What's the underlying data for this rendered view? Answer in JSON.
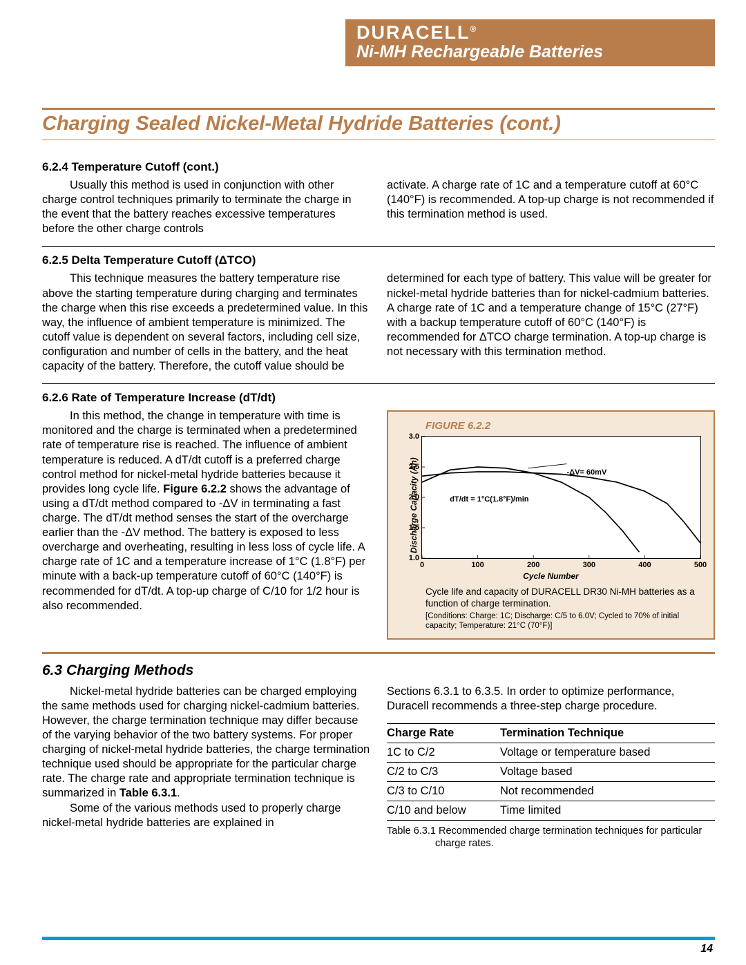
{
  "header": {
    "brand": "DURACELL",
    "brand_reg": "®",
    "subtitle": "Ni-MH Rechargeable Batteries",
    "bar_color": "#b87d4b",
    "text_color": "#ffffff"
  },
  "title": "Charging Sealed Nickel-Metal Hydride Batteries (cont.)",
  "sections": {
    "s624": {
      "head": "6.2.4 Temperature Cutoff (cont.)",
      "left": "Usually this method is used in conjunction with other charge control techniques primarily to terminate the charge in the event that the battery reaches excessive temperatures before the other charge controls",
      "right": "activate.  A charge rate of 1C and a temperature cutoff at 60°C (140°F) is recommended.  A top-up charge is not recommended if this termination method is used."
    },
    "s625": {
      "head": "6.2.5  Delta Temperature Cutoff (ΔTCO)",
      "left": "This technique measures the battery temperature rise above the starting temperature during charging and terminates the charge when this rise exceeds a predetermined value.  In this way, the influence of ambient temperature is minimized.  The cutoff value is dependent on several factors, including cell size, configuration and number of cells in the battery, and the heat capacity of the battery.  Therefore, the cutoff value should be",
      "right": "determined for each type of battery.  This value will be greater for nickel-metal hydride batteries than for nickel-cadmium batteries.  A charge rate of 1C and a temperature change of 15°C (27°F) with a backup temperature cutoff of 60°C (140°F) is recommended for ΔTCO charge termination.  A top-up charge is not necessary with this termination method."
    },
    "s626": {
      "head": "6.2.6  Rate of Temperature Increase (dT/dt)",
      "p1": "In this method, the change in temperature with time is monitored and the charge is terminated when a predetermined rate of temperature rise is reached.  The influence of ambient temperature is reduced.  A dT/dt cutoff is a preferred charge control method for nickel-metal hydride batteries because it provides long cycle life.  ",
      "p1b": " shows the advantage of using a dT/dt method compared to -ΔV in terminating a fast charge.  The dT/dt method senses the start of the overcharge earlier than the -ΔV method.  The battery is exposed to less overcharge and overheating, resulting in less loss of cycle life.  A charge rate of 1C and a temperature increase of 1°C (1.8°F) per minute with a back-up temperature cutoff of 60°C (140°F) is recommended for dT/dt.  A top-up charge of C/10 for 1/2 hour is also recommended.",
      "fig_ref": "Figure 6.2.2"
    },
    "s63": {
      "head": "6.3  Charging Methods",
      "left1": "Nickel-metal hydride batteries can be charged employing the same methods used for charging nickel-cadmium batteries.  However, the charge termination technique may differ because of the varying behavior of the two battery systems.  For proper charging of nickel-metal hydride batteries, the charge termination technique used should be appropriate for the particular charge rate.  The charge rate and appropriate termination technique is summarized in ",
      "tbl_ref": "Table 6.3.1",
      "left1b": ".",
      "left2": "Some of the various methods used to properly charge nickel-metal hydride batteries are explained in",
      "right1": "Sections 6.3.1 to 6.3.5.  In order to optimize performance, Duracell recommends a three-step charge procedure."
    }
  },
  "figure": {
    "label": "FIGURE 6.2.2",
    "type": "line",
    "xlabel": "Cycle Number",
    "ylabel": "Discharge Capacity (Ah)",
    "xlim": [
      0,
      500
    ],
    "xtick_step": 100,
    "ylim": [
      1.0,
      3.0
    ],
    "ytick_step": 0.5,
    "xticks": [
      "0",
      "100",
      "200",
      "300",
      "400",
      "500"
    ],
    "yticks": [
      "1.0",
      "1.5",
      "2.0",
      "2.5",
      "3.0"
    ],
    "series": [
      {
        "name": "dT/dt = 1°C(1.8°F)/min",
        "color": "#000000",
        "x": [
          0,
          50,
          100,
          150,
          200,
          250,
          300,
          350,
          400,
          440,
          470,
          500
        ],
        "y": [
          2.35,
          2.4,
          2.42,
          2.42,
          2.4,
          2.38,
          2.33,
          2.25,
          2.1,
          1.9,
          1.6,
          1.25
        ]
      },
      {
        "name": "-ΔV= 60mV",
        "color": "#000000",
        "x": [
          0,
          50,
          100,
          150,
          200,
          250,
          300,
          330,
          360,
          390
        ],
        "y": [
          2.25,
          2.45,
          2.5,
          2.48,
          2.4,
          2.25,
          2.0,
          1.75,
          1.45,
          1.1
        ]
      }
    ],
    "annotations": {
      "a1": "-ΔV= 60mV",
      "a2": "dT/dt = 1°C(1.8°F)/min"
    },
    "caption": "Cycle life and capacity of DURACELL DR30 Ni-MH batteries as a function of charge termination.",
    "conditions": "[Conditions: Charge: 1C; Discharge: C/5 to 6.0V; Cycled to 70% of initial capacity; Temperature:  21°C (70°F)]",
    "background_color": "#f5e8d8",
    "border_color": "#b87d4b"
  },
  "table": {
    "columns": [
      "Charge Rate",
      "Termination Technique"
    ],
    "rows": [
      [
        "1C to C/2",
        "Voltage or temperature based"
      ],
      [
        "C/2 to C/3",
        "Voltage based"
      ],
      [
        "C/3 to C/10",
        "Not recommended"
      ],
      [
        "C/10 and below",
        "Time limited"
      ]
    ],
    "caption": "Table 6.3.1 Recommended charge termination techniques for particular charge rates."
  },
  "page_number": "14",
  "accent_blue": "#0099d8"
}
